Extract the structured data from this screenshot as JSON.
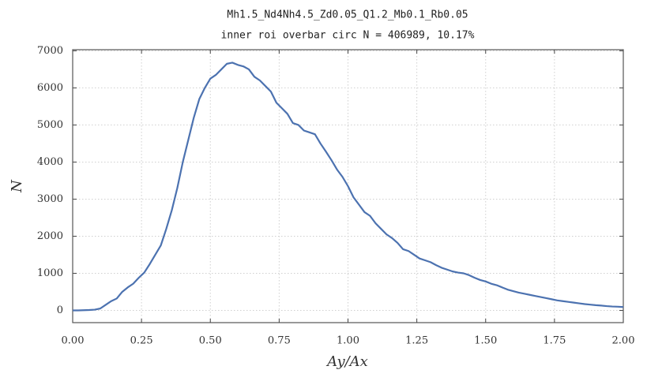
{
  "chart_data": {
    "type": "line",
    "title": "Mh1.5_Nd4Nh4.5_Zd0.05_Q1.2_Mb0.1_Rb0.05",
    "subtitle": "inner roi overbar circ  N = 406989,   10.17%",
    "x_label": "Ay/Ax",
    "y_label": "N",
    "color": "#4c72b0",
    "grid": true,
    "xlim": [
      0,
      2
    ],
    "ylim": [
      -330,
      7030
    ],
    "xticks": [
      {
        "value": 0,
        "label": "0.00"
      },
      {
        "value": 0.25,
        "label": "0.25"
      },
      {
        "value": 0.5,
        "label": "0.50"
      },
      {
        "value": 0.75,
        "label": "0.75"
      },
      {
        "value": 1,
        "label": "1.00"
      },
      {
        "value": 1.25,
        "label": "1.25"
      },
      {
        "value": 1.5,
        "label": "1.50"
      },
      {
        "value": 1.75,
        "label": "1.75"
      },
      {
        "value": 2,
        "label": "2.00"
      }
    ],
    "yticks": [
      0,
      1000,
      2000,
      3000,
      4000,
      5000,
      6000,
      7000
    ],
    "x": [
      0.0,
      0.02,
      0.04,
      0.06,
      0.08,
      0.1,
      0.12,
      0.14,
      0.16,
      0.18,
      0.2,
      0.22,
      0.24,
      0.26,
      0.28,
      0.3,
      0.32,
      0.34,
      0.36,
      0.38,
      0.4,
      0.42,
      0.44,
      0.46,
      0.48,
      0.5,
      0.52,
      0.54,
      0.56,
      0.58,
      0.6,
      0.62,
      0.64,
      0.66,
      0.68,
      0.7,
      0.72,
      0.74,
      0.76,
      0.78,
      0.8,
      0.82,
      0.84,
      0.86,
      0.88,
      0.9,
      0.92,
      0.94,
      0.96,
      0.98,
      1.0,
      1.02,
      1.04,
      1.06,
      1.08,
      1.1,
      1.12,
      1.14,
      1.16,
      1.18,
      1.2,
      1.22,
      1.24,
      1.26,
      1.28,
      1.3,
      1.32,
      1.34,
      1.36,
      1.38,
      1.4,
      1.42,
      1.44,
      1.46,
      1.48,
      1.5,
      1.52,
      1.54,
      1.56,
      1.58,
      1.6,
      1.62,
      1.64,
      1.66,
      1.68,
      1.7,
      1.72,
      1.74,
      1.76,
      1.78,
      1.8,
      1.82,
      1.84,
      1.86,
      1.88,
      1.9,
      1.92,
      1.94,
      1.96,
      1.98,
      2.0
    ],
    "values": [
      0,
      0,
      5,
      10,
      20,
      50,
      150,
      250,
      320,
      500,
      620,
      720,
      880,
      1020,
      1250,
      1500,
      1750,
      2200,
      2700,
      3300,
      4000,
      4600,
      5200,
      5700,
      6000,
      6250,
      6350,
      6500,
      6650,
      6680,
      6620,
      6580,
      6500,
      6300,
      6200,
      6050,
      5900,
      5600,
      5450,
      5300,
      5050,
      5000,
      4850,
      4800,
      4750,
      4500,
      4280,
      4050,
      3800,
      3600,
      3350,
      3050,
      2850,
      2650,
      2550,
      2350,
      2200,
      2050,
      1950,
      1820,
      1650,
      1600,
      1500,
      1400,
      1350,
      1300,
      1220,
      1150,
      1100,
      1050,
      1020,
      1000,
      950,
      880,
      820,
      780,
      720,
      680,
      620,
      560,
      520,
      480,
      450,
      420,
      390,
      360,
      330,
      300,
      270,
      250,
      230,
      210,
      190,
      170,
      155,
      140,
      130,
      115,
      105,
      100,
      90
    ]
  }
}
